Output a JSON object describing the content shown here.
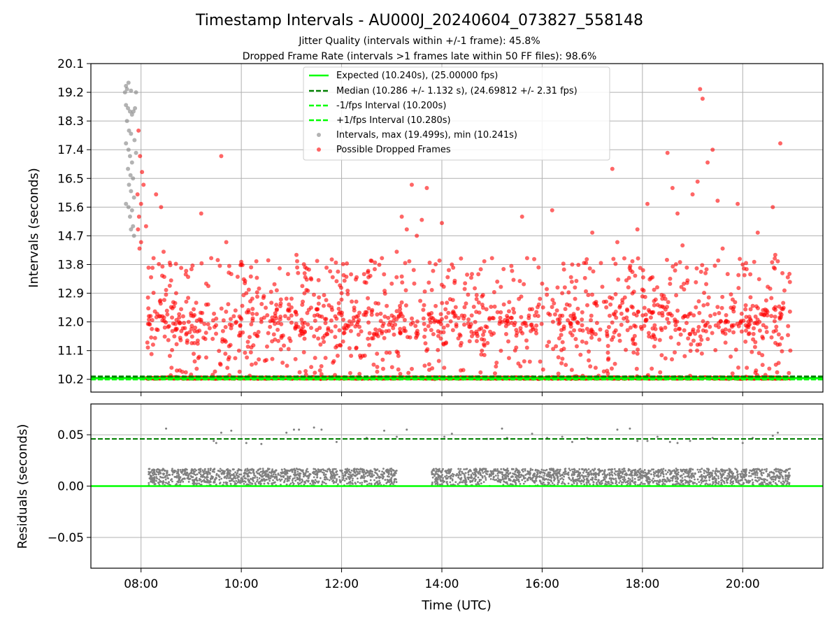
{
  "title": "Timestamp Intervals - AU000J_20240604_073827_558148",
  "subtitle_1": "Jitter Quality (intervals within +/-1 frame): 45.8%",
  "subtitle_2": "Dropped Frame Rate (intervals >1 frames late within 50 FF files): 98.6%",
  "colors": {
    "expected": "#00ff00",
    "median": "#007f00",
    "intervals": "#808080",
    "dropped": "#ff0000",
    "grid": "#b0b0b0"
  },
  "chart_data": [
    {
      "type": "scatter",
      "name": "intervals",
      "xlabel": "",
      "ylabel": "Intervals (seconds)",
      "xlim": [
        7.0,
        21.6
      ],
      "ylim": [
        9.8,
        20.1
      ],
      "y_ticks": [
        "10.2",
        "11.1",
        "12.0",
        "12.9",
        "13.8",
        "14.7",
        "15.6",
        "16.5",
        "17.4",
        "18.3",
        "19.2",
        "20.1"
      ],
      "grid": true,
      "legend_position": "top-center",
      "legend": [
        {
          "label": "Expected (10.240s), (25.00000 fps)",
          "style": "solid",
          "color": "#00ff00"
        },
        {
          "label": "Median (10.286 +/- 1.132 s), (24.69812 +/- 2.31 fps)",
          "style": "dashed",
          "color": "#007f00"
        },
        {
          "label": "-1/fps Interval (10.200s)",
          "style": "dashed",
          "color": "#00ff00"
        },
        {
          "label": "+1/fps Interval (10.280s)",
          "style": "dashed",
          "color": "#00ff00"
        },
        {
          "label": "Intervals, max (19.499s), min (10.241s)",
          "style": "marker",
          "color": "#808080"
        },
        {
          "label": "Possible Dropped Frames",
          "style": "marker",
          "color": "#ff0000"
        }
      ],
      "lines": {
        "expected": 10.24,
        "median": 10.286,
        "minus_1fps": 10.2,
        "plus_1fps": 10.28
      },
      "interval_stats": {
        "max": 19.499,
        "min": 10.241
      },
      "series_gray_points": [
        [
          7.7,
          19.4
        ],
        [
          7.72,
          19.3
        ],
        [
          7.75,
          19.5
        ],
        [
          7.68,
          19.2
        ],
        [
          7.8,
          19.25
        ],
        [
          7.7,
          18.8
        ],
        [
          7.74,
          18.7
        ],
        [
          7.78,
          18.6
        ],
        [
          7.82,
          18.5
        ],
        [
          7.85,
          18.6
        ],
        [
          7.72,
          18.3
        ],
        [
          7.76,
          18.0
        ],
        [
          7.8,
          17.9
        ],
        [
          7.7,
          17.6
        ],
        [
          7.75,
          17.4
        ],
        [
          7.78,
          17.2
        ],
        [
          7.82,
          17.0
        ],
        [
          7.74,
          16.8
        ],
        [
          7.79,
          16.6
        ],
        [
          7.84,
          16.5
        ],
        [
          7.76,
          16.3
        ],
        [
          7.8,
          16.1
        ],
        [
          7.86,
          15.9
        ],
        [
          7.7,
          15.7
        ],
        [
          7.75,
          15.6
        ],
        [
          7.82,
          15.5
        ],
        [
          7.78,
          15.3
        ],
        [
          7.84,
          15.0
        ],
        [
          7.8,
          14.9
        ],
        [
          7.86,
          14.7
        ],
        [
          7.9,
          19.2
        ],
        [
          7.88,
          18.7
        ],
        [
          7.87,
          17.7
        ],
        [
          7.9,
          17.3
        ]
      ],
      "series_red_points": [
        [
          7.95,
          18.0
        ],
        [
          7.98,
          17.2
        ],
        [
          8.02,
          16.7
        ],
        [
          8.05,
          16.3
        ],
        [
          7.93,
          16.0
        ],
        [
          8.0,
          15.7
        ],
        [
          7.96,
          15.3
        ],
        [
          8.1,
          15.0
        ],
        [
          7.94,
          14.9
        ],
        [
          8.0,
          14.5
        ],
        [
          7.97,
          14.3
        ],
        [
          8.15,
          13.7
        ],
        [
          8.2,
          13.4
        ],
        [
          8.25,
          14.0
        ],
        [
          8.3,
          16.0
        ],
        [
          8.4,
          15.6
        ],
        [
          8.45,
          14.2
        ],
        [
          8.5,
          13.0
        ],
        [
          8.6,
          13.3
        ],
        [
          8.7,
          12.9
        ],
        [
          8.8,
          12.4
        ],
        [
          8.9,
          13.6
        ],
        [
          8.95,
          12.0
        ],
        [
          9.0,
          12.2
        ],
        [
          9.05,
          11.0
        ],
        [
          9.1,
          12.6
        ],
        [
          9.2,
          15.4
        ],
        [
          9.3,
          13.2
        ],
        [
          9.4,
          14.0
        ],
        [
          9.5,
          12.1
        ],
        [
          9.6,
          17.2
        ],
        [
          9.7,
          14.5
        ],
        [
          9.8,
          13.5
        ],
        [
          9.9,
          12.0
        ],
        [
          10.0,
          13.8
        ],
        [
          10.1,
          12.9
        ],
        [
          10.2,
          11.2
        ],
        [
          10.3,
          13.9
        ],
        [
          10.4,
          12.0
        ],
        [
          10.6,
          12.6
        ],
        [
          10.8,
          11.5
        ],
        [
          11.0,
          12.2
        ],
        [
          11.1,
          14.1
        ],
        [
          11.3,
          13.0
        ],
        [
          11.5,
          12.4
        ],
        [
          11.7,
          13.7
        ],
        [
          11.9,
          12.1
        ],
        [
          12.0,
          12.9
        ],
        [
          12.1,
          11.8
        ],
        [
          12.3,
          13.4
        ],
        [
          12.5,
          12.3
        ],
        [
          12.7,
          11.6
        ],
        [
          12.9,
          12.5
        ],
        [
          13.0,
          13.2
        ],
        [
          13.1,
          14.2
        ],
        [
          13.2,
          15.3
        ],
        [
          13.3,
          14.9
        ],
        [
          13.35,
          13.9
        ],
        [
          13.4,
          16.3
        ],
        [
          13.5,
          14.7
        ],
        [
          13.6,
          15.2
        ],
        [
          13.7,
          16.2
        ],
        [
          13.8,
          13.0
        ],
        [
          14.0,
          15.1
        ],
        [
          14.1,
          12.6
        ],
        [
          14.2,
          13.8
        ],
        [
          14.4,
          12.2
        ],
        [
          14.6,
          13.5
        ],
        [
          14.8,
          12.8
        ],
        [
          15.0,
          14.0
        ],
        [
          15.2,
          12.0
        ],
        [
          15.4,
          13.6
        ],
        [
          15.6,
          15.3
        ],
        [
          15.7,
          14.0
        ],
        [
          15.8,
          12.4
        ],
        [
          16.0,
          13.2
        ],
        [
          16.2,
          15.5
        ],
        [
          16.4,
          12.9
        ],
        [
          16.6,
          13.8
        ],
        [
          16.8,
          12.3
        ],
        [
          17.0,
          14.8
        ],
        [
          17.2,
          13.1
        ],
        [
          17.4,
          16.8
        ],
        [
          17.5,
          14.5
        ],
        [
          17.6,
          12.6
        ],
        [
          17.8,
          13.9
        ],
        [
          17.9,
          14.9
        ],
        [
          18.0,
          12.8
        ],
        [
          18.1,
          15.7
        ],
        [
          18.2,
          13.4
        ],
        [
          18.4,
          12.2
        ],
        [
          18.5,
          17.3
        ],
        [
          18.6,
          16.2
        ],
        [
          18.7,
          15.4
        ],
        [
          18.8,
          14.4
        ],
        [
          18.9,
          13.3
        ],
        [
          19.0,
          16.0
        ],
        [
          19.1,
          16.4
        ],
        [
          19.15,
          19.3
        ],
        [
          19.2,
          19.0
        ],
        [
          19.3,
          17.0
        ],
        [
          19.4,
          17.4
        ],
        [
          19.5,
          15.8
        ],
        [
          19.6,
          14.3
        ],
        [
          19.7,
          13.5
        ],
        [
          19.8,
          12.7
        ],
        [
          19.9,
          15.7
        ],
        [
          20.0,
          13.8
        ],
        [
          20.2,
          12.5
        ],
        [
          20.3,
          14.8
        ],
        [
          20.5,
          13.1
        ],
        [
          20.6,
          15.6
        ],
        [
          20.65,
          14.1
        ],
        [
          20.7,
          13.9
        ],
        [
          20.75,
          17.6
        ],
        [
          20.8,
          12.4
        ],
        [
          20.9,
          13.4
        ],
        [
          20.95,
          11.1
        ]
      ],
      "red_band": {
        "x_start": 8.1,
        "x_end": 20.95,
        "y_low": 10.2,
        "y_high": 13.2
      },
      "red_cluster_center": 12.0
    },
    {
      "type": "scatter",
      "name": "residuals",
      "xlabel": "Time (UTC)",
      "ylabel": "Residuals (seconds)",
      "xlim": [
        7.0,
        21.6
      ],
      "ylim": [
        -0.08,
        0.08
      ],
      "x_ticks": [
        {
          "value": 8,
          "label": "08:00"
        },
        {
          "value": 10,
          "label": "10:00"
        },
        {
          "value": 12,
          "label": "12:00"
        },
        {
          "value": 14,
          "label": "14:00"
        },
        {
          "value": 16,
          "label": "16:00"
        },
        {
          "value": 18,
          "label": "18:00"
        },
        {
          "value": 20,
          "label": "20:00"
        }
      ],
      "y_ticks": [
        {
          "value": 0.05,
          "label": "0.05"
        },
        {
          "value": 0.0,
          "label": "0.00"
        },
        {
          "value": -0.05,
          "label": "−0.05"
        }
      ],
      "grid": true,
      "lines": {
        "zero": 0.0,
        "median_residual": 0.046
      },
      "band": {
        "x_segments": [
          [
            8.15,
            13.1
          ],
          [
            13.8,
            20.95
          ]
        ],
        "y_low": 0.0,
        "y_high": 0.017
      },
      "outliers": [
        [
          8.5,
          0.056
        ],
        [
          9.45,
          0.044
        ],
        [
          9.5,
          0.042
        ],
        [
          9.6,
          0.052
        ],
        [
          9.8,
          0.054
        ],
        [
          10.1,
          0.042
        ],
        [
          10.4,
          0.041
        ],
        [
          10.9,
          0.052
        ],
        [
          11.05,
          0.055
        ],
        [
          11.15,
          0.055
        ],
        [
          11.45,
          0.057
        ],
        [
          11.6,
          0.055
        ],
        [
          11.9,
          0.043
        ],
        [
          12.5,
          0.047
        ],
        [
          12.85,
          0.054
        ],
        [
          13.1,
          0.048
        ],
        [
          13.3,
          0.055
        ],
        [
          14.05,
          0.048
        ],
        [
          14.2,
          0.051
        ],
        [
          14.9,
          0.046
        ],
        [
          15.2,
          0.056
        ],
        [
          15.3,
          0.047
        ],
        [
          15.8,
          0.051
        ],
        [
          16.1,
          0.047
        ],
        [
          16.4,
          0.048
        ],
        [
          16.6,
          0.043
        ],
        [
          16.9,
          0.047
        ],
        [
          17.1,
          0.046
        ],
        [
          17.5,
          0.055
        ],
        [
          17.75,
          0.056
        ],
        [
          17.9,
          0.044
        ],
        [
          18.1,
          0.044
        ],
        [
          18.3,
          0.048
        ],
        [
          18.55,
          0.043
        ],
        [
          18.7,
          0.042
        ],
        [
          18.95,
          0.044
        ],
        [
          19.4,
          0.047
        ],
        [
          20.0,
          0.042
        ],
        [
          20.2,
          0.047
        ],
        [
          20.6,
          0.049
        ],
        [
          20.7,
          0.052
        ]
      ]
    }
  ]
}
